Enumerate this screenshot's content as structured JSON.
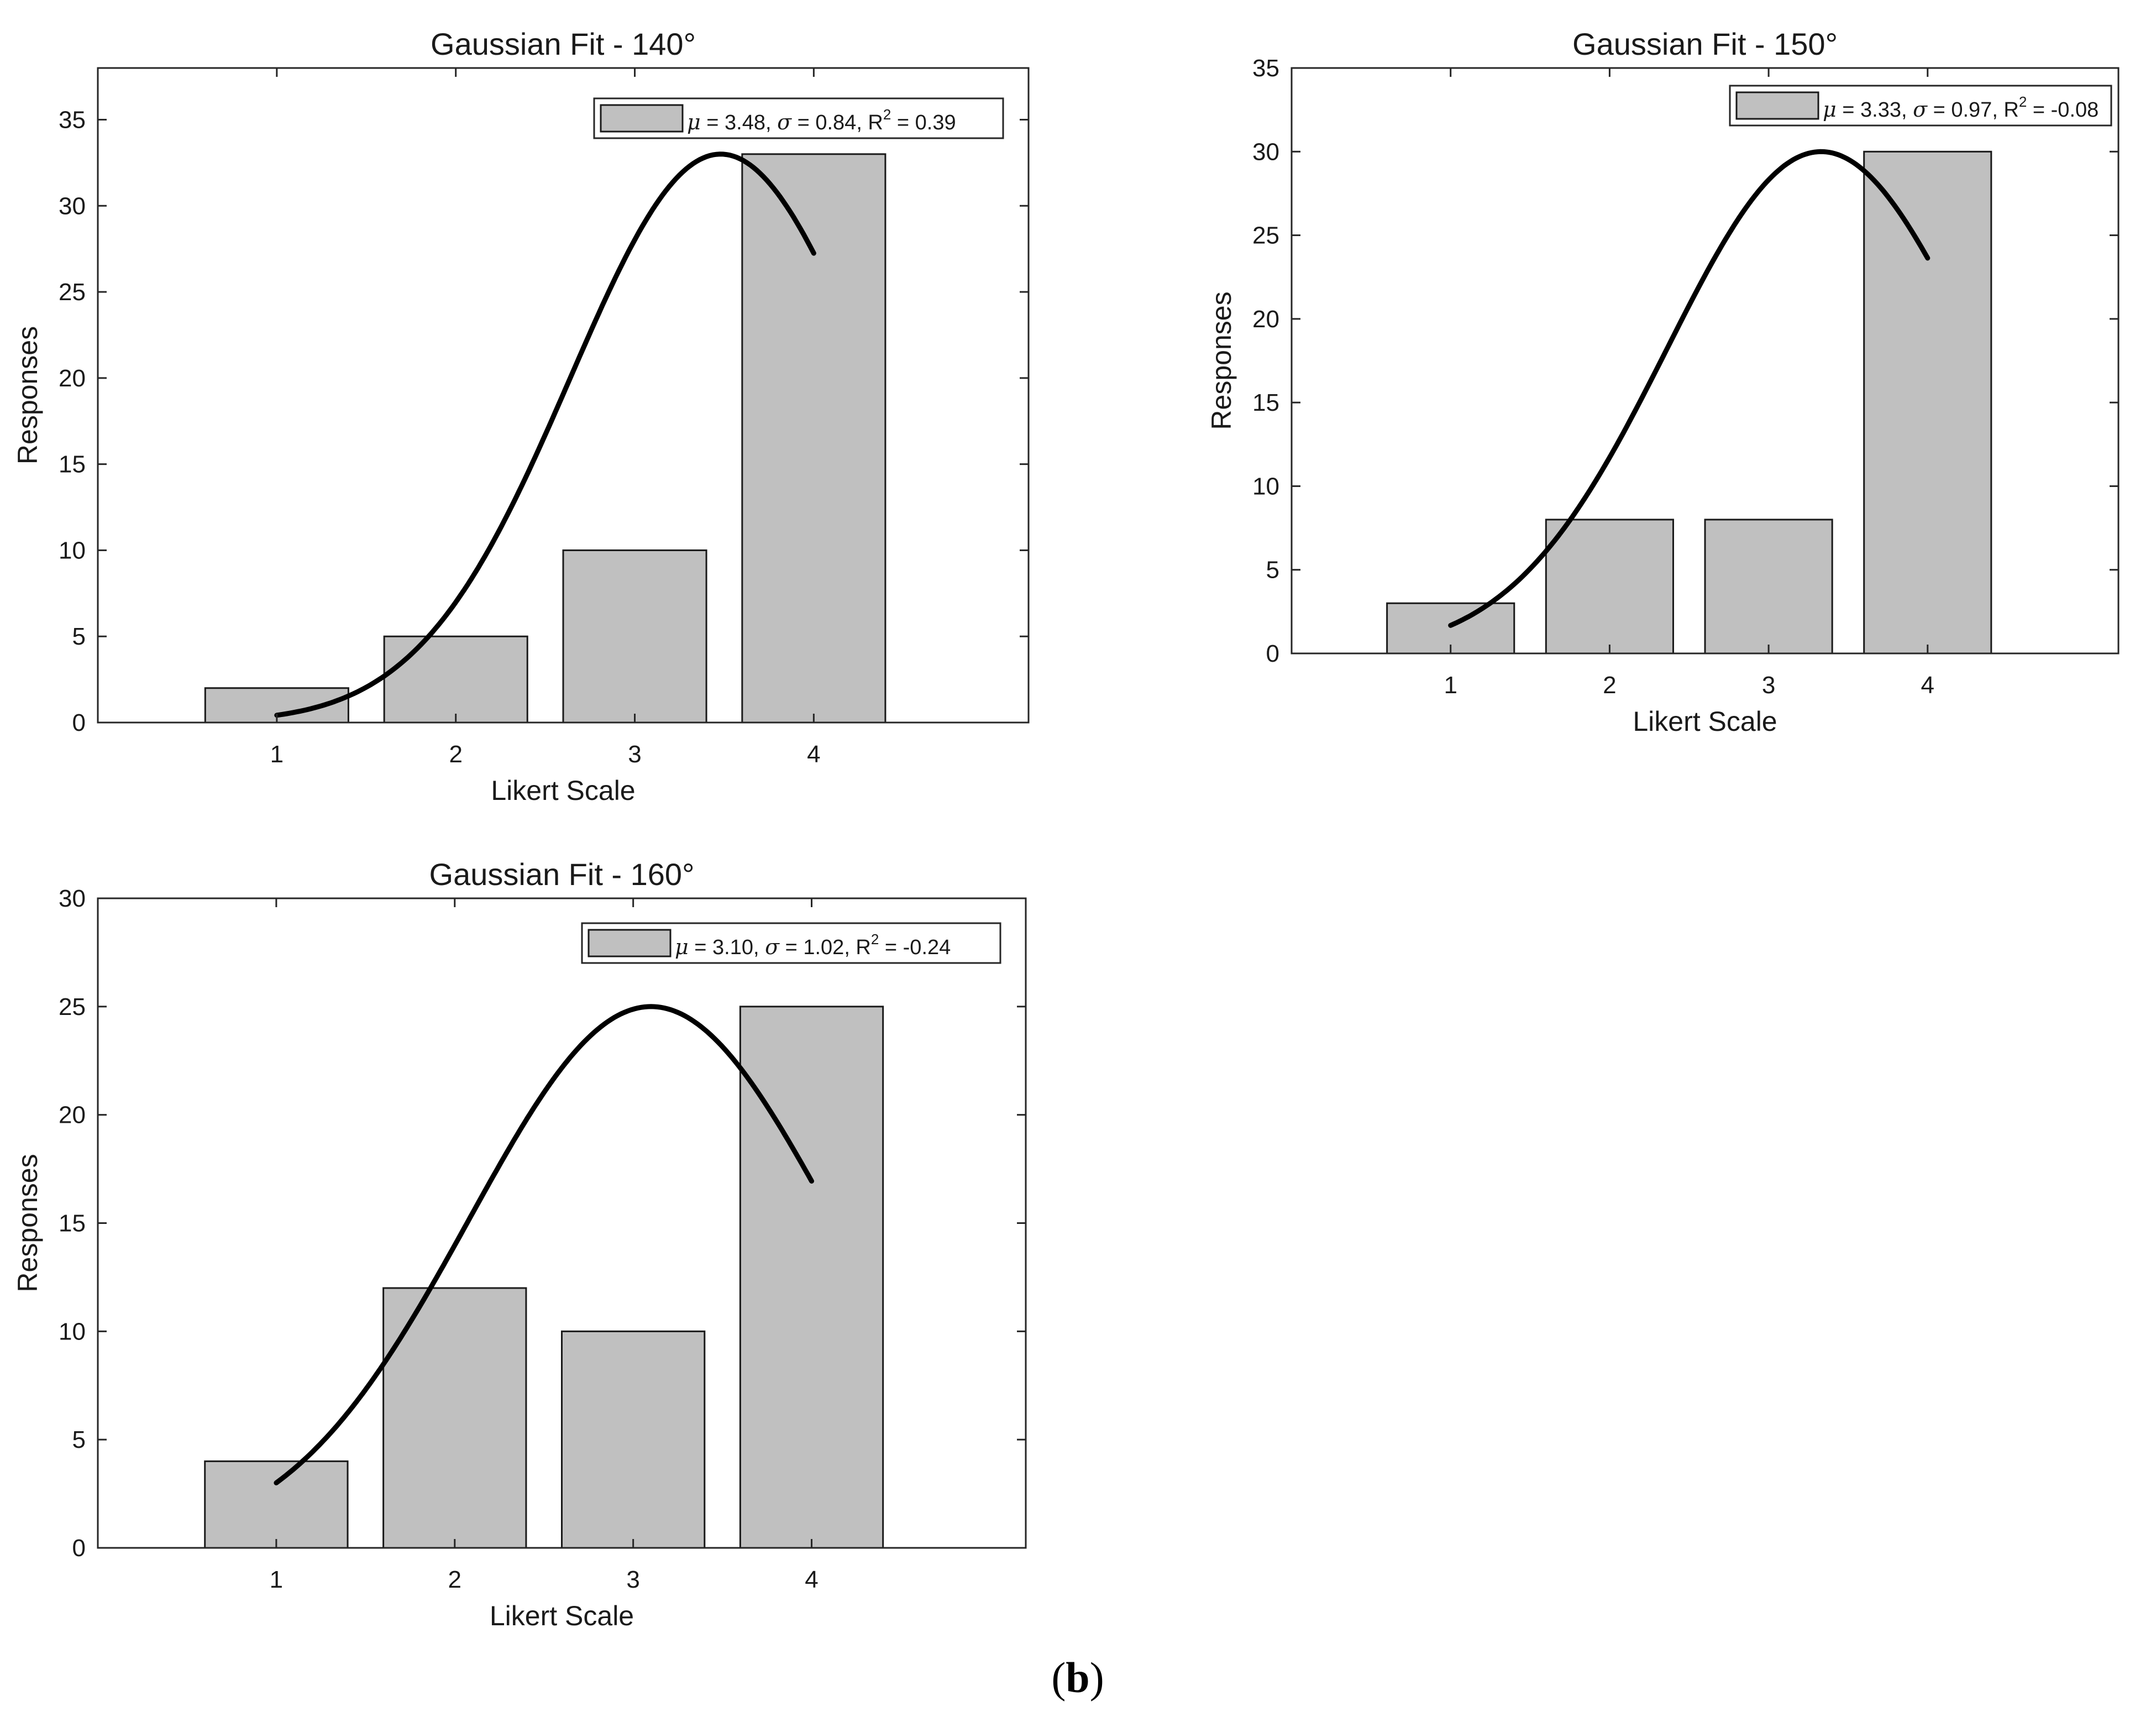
{
  "chart_data": [
    {
      "type": "bar",
      "title": "Gaussian Fit -  140°",
      "xlabel": "Likert Scale",
      "ylabel": "Responses",
      "categories": [
        "1",
        "2",
        "3",
        "4"
      ],
      "values": [
        2,
        5,
        10,
        33
      ],
      "xlim": [
        0,
        5.2
      ],
      "ylim": [
        0,
        38
      ],
      "yticks": [
        0,
        5,
        10,
        15,
        20,
        25,
        30,
        35
      ],
      "fit": {
        "type": "gaussian",
        "mu": 3.48,
        "sigma": 0.84,
        "peak": 33,
        "x_range": [
          1,
          4
        ]
      },
      "legend": {
        "mu_label": "μ",
        "mu_text": " = 3.48, ",
        "sigma_label": "σ",
        "sigma_text": " = 0.84, R",
        "sup": "2",
        "r2_text": " = 0.39",
        "placement": "top-right"
      },
      "bar_color": "#c0c0c0"
    },
    {
      "type": "bar",
      "title": "Gaussian Fit -  150°",
      "xlabel": "Likert Scale",
      "ylabel": "Responses",
      "categories": [
        "1",
        "2",
        "3",
        "4"
      ],
      "values": [
        3,
        8,
        8,
        30
      ],
      "xlim": [
        0,
        5.2
      ],
      "ylim": [
        0,
        35
      ],
      "yticks": [
        0,
        5,
        10,
        15,
        20,
        25,
        30,
        35
      ],
      "fit": {
        "type": "gaussian",
        "mu": 3.33,
        "sigma": 0.97,
        "peak": 30,
        "x_range": [
          1,
          4
        ]
      },
      "legend": {
        "mu_label": "μ",
        "mu_text": " = 3.33, ",
        "sigma_label": "σ",
        "sigma_text": " = 0.97, R",
        "sup": "2",
        "r2_text": " = -0.08",
        "placement": "top-right"
      },
      "bar_color": "#c0c0c0"
    },
    {
      "type": "bar",
      "title": "Gaussian Fit -  160°",
      "xlabel": "Likert Scale",
      "ylabel": "Responses",
      "categories": [
        "1",
        "2",
        "3",
        "4"
      ],
      "values": [
        4,
        12,
        10,
        25
      ],
      "xlim": [
        0,
        5.2
      ],
      "ylim": [
        0,
        30
      ],
      "yticks": [
        0,
        5,
        10,
        15,
        20,
        25,
        30
      ],
      "fit": {
        "type": "gaussian",
        "mu": 3.1,
        "sigma": 1.02,
        "peak": 25,
        "x_range": [
          1,
          4
        ]
      },
      "legend": {
        "mu_label": "μ",
        "mu_text": " = 3.10, ",
        "sigma_label": "σ",
        "sigma_text": " = 1.02, R",
        "sup": "2",
        "r2_text": " = -0.24",
        "placement": "top-right"
      },
      "bar_color": "#c0c0c0"
    }
  ],
  "caption": {
    "open": "(",
    "label": "b",
    "close": ")"
  }
}
